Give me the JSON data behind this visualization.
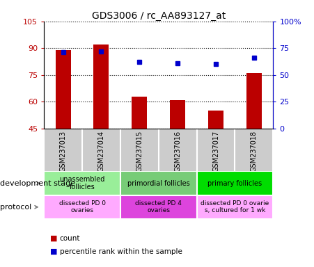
{
  "title": "GDS3006 / rc_AA893127_at",
  "samples": [
    "GSM237013",
    "GSM237014",
    "GSM237015",
    "GSM237016",
    "GSM237017",
    "GSM237018"
  ],
  "counts": [
    89,
    92,
    63,
    61,
    55,
    76
  ],
  "percentiles": [
    71,
    72,
    62,
    61,
    60,
    66
  ],
  "ylim_left": [
    45,
    105
  ],
  "ylim_right": [
    0,
    100
  ],
  "yticks_left": [
    45,
    60,
    75,
    90,
    105
  ],
  "yticks_right": [
    0,
    25,
    50,
    75,
    100
  ],
  "ytick_labels_right": [
    "0",
    "25",
    "50",
    "75",
    "100%"
  ],
  "bar_color": "#bb0000",
  "dot_color": "#0000cc",
  "sample_bg_color": "#cccccc",
  "dev_stage_groups": [
    {
      "label": "unassembled\nfollicles",
      "span": [
        0,
        2
      ],
      "color": "#99ee99"
    },
    {
      "label": "primordial follicles",
      "span": [
        2,
        4
      ],
      "color": "#77cc77"
    },
    {
      "label": "primary follicles",
      "span": [
        4,
        6
      ],
      "color": "#00dd00"
    }
  ],
  "protocol_groups": [
    {
      "label": "dissected PD 0\novaries",
      "span": [
        0,
        2
      ],
      "color": "#ffaaff"
    },
    {
      "label": "dissected PD 4\novaries",
      "span": [
        2,
        4
      ],
      "color": "#dd44dd"
    },
    {
      "label": "dissected PD 0 ovarie\ns, cultured for 1 wk",
      "span": [
        4,
        6
      ],
      "color": "#ffaaff"
    }
  ],
  "legend_count_label": "count",
  "legend_pct_label": "percentile rank within the sample",
  "dev_stage_label": "development stage",
  "protocol_label": "protocol",
  "xlim": [
    -0.5,
    5.5
  ],
  "bar_width": 0.4
}
